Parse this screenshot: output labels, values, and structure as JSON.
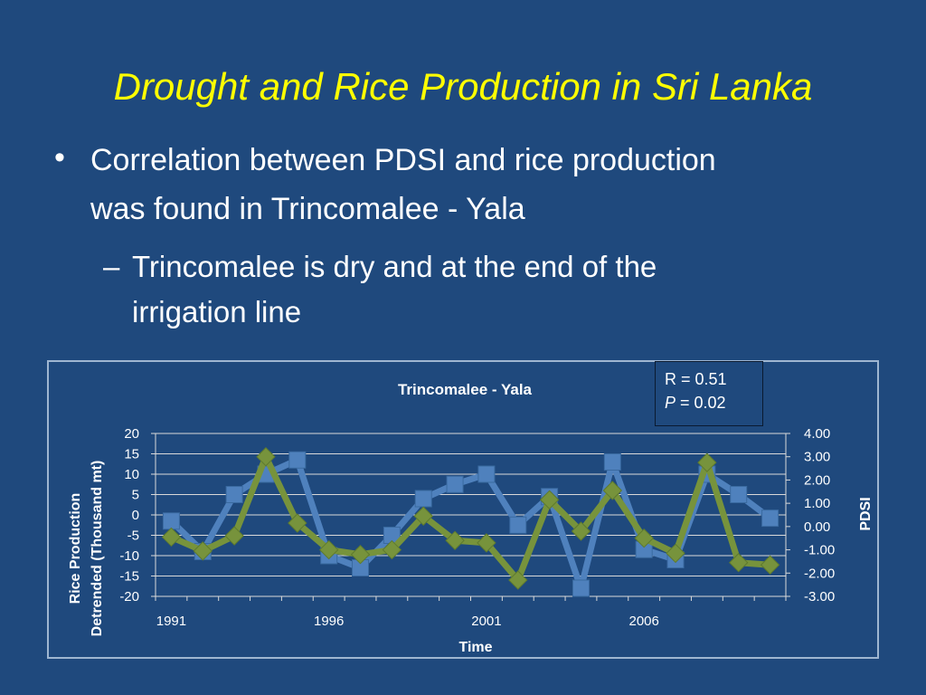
{
  "slide": {
    "title": "Drought and Rice Production in Sri Lanka",
    "bullet1": {
      "symbol": "•",
      "line1": "Correlation between PDSI and rice production",
      "line2": "was found  in Trincomalee - Yala"
    },
    "bullet2": {
      "symbol": "–",
      "line1": "Trincomalee is dry and at the end of the",
      "line2": "irrigation line"
    }
  },
  "stats": {
    "r_text": "R = 0.51",
    "p_letter": "P",
    "p_rest": " = 0.02"
  },
  "chart_data": {
    "type": "line",
    "title": "Trincomalee - Yala",
    "xlabel": "Time",
    "ylabel_line1": "Rice Production",
    "ylabel_line2": "Detrended (Thousand mt)",
    "y2label": "PDSI",
    "x_tick_labels": [
      "1991",
      "1996",
      "2001",
      "2006"
    ],
    "x": [
      1991,
      1992,
      1993,
      1994,
      1995,
      1996,
      1997,
      1998,
      1999,
      2000,
      2001,
      2002,
      2003,
      2004,
      2005,
      2006,
      2007,
      2008,
      2009,
      2010
    ],
    "ylim": [
      -20,
      20
    ],
    "y_ticks": [
      "20",
      "15",
      "10",
      "5",
      "0",
      "-5",
      "-10",
      "-15",
      "-20"
    ],
    "y2lim": [
      -3,
      4
    ],
    "y2_ticks": [
      "4.00",
      "3.00",
      "2.00",
      "1.00",
      "0.00",
      "-1.00",
      "-2.00",
      "-3.00"
    ],
    "grid": true,
    "series": [
      {
        "axis": "left",
        "color": "#4f81bd",
        "marker": "square",
        "values": [
          -1.5,
          -9,
          5,
          10,
          13.5,
          -10,
          -13,
          -5,
          4,
          7.5,
          10,
          -2.5,
          4.5,
          -18,
          13,
          -8.5,
          -11,
          10,
          5,
          -0.8
        ]
      },
      {
        "axis": "right",
        "color": "#77933c",
        "marker": "diamond",
        "values": [
          -0.45,
          -1.05,
          -0.4,
          3.0,
          0.15,
          -1.0,
          -1.2,
          -1.0,
          0.45,
          -0.6,
          -0.7,
          -2.3,
          1.15,
          -0.2,
          1.55,
          -0.5,
          -1.15,
          2.75,
          -1.55,
          -1.65
        ]
      }
    ]
  }
}
